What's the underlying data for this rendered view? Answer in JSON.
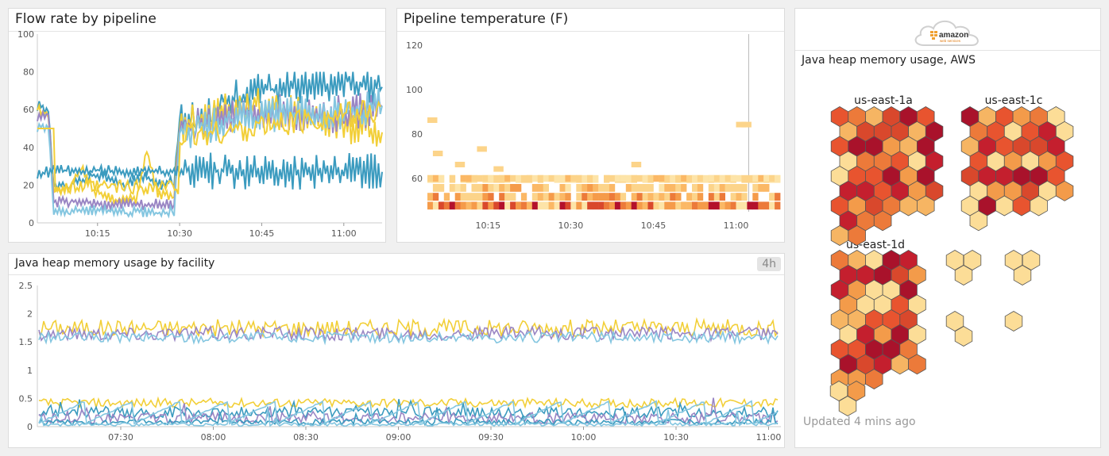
{
  "flow_panel": {
    "title": "Flow rate by pipeline"
  },
  "temp_panel": {
    "title": "Pipeline temperature (F)"
  },
  "heap_facility_panel": {
    "title": "Java heap memory usage by facility",
    "badge": "4h"
  },
  "aws_panel": {
    "logo_text": "amazon",
    "logo_sub": "web services",
    "title": "Java heap memory usage, AWS",
    "groups": [
      {
        "label": "us-east-1a"
      },
      {
        "label": "us-east-1c"
      },
      {
        "label": "us-east-1d"
      }
    ],
    "updated": "Updated 4 mins ago"
  },
  "colors": {
    "yellow": "#f2cf38",
    "purple": "#9a86c4",
    "blue": "#3b9bbf",
    "lightblue": "#84c6e0",
    "heat_light": "#fcdd97",
    "heat_mid": "#f39b4a",
    "heat_dark": "#b3112c"
  },
  "chart_data": [
    {
      "type": "line",
      "title": "Flow rate by pipeline",
      "xlabel": "",
      "ylabel": "",
      "x_ticks": [
        "10:15",
        "10:30",
        "10:45",
        "11:00"
      ],
      "y_ticks": [
        0,
        20,
        40,
        60,
        80,
        100
      ],
      "ylim": [
        0,
        100
      ],
      "xlim_minutes": [
        4,
        67
      ],
      "series": [
        {
          "values": [
            [
              4,
              62
            ],
            [
              6,
              60
            ],
            [
              7,
              20
            ],
            [
              10,
              20
            ],
            [
              12,
              22
            ],
            [
              14,
              25
            ],
            [
              16,
              26
            ],
            [
              18,
              22
            ],
            [
              20,
              20
            ],
            [
              22,
              23
            ],
            [
              24,
              24
            ],
            [
              26,
              20
            ],
            [
              29,
              22
            ],
            [
              30,
              55
            ],
            [
              33,
              58
            ],
            [
              36,
              62
            ],
            [
              40,
              66
            ],
            [
              44,
              70
            ],
            [
              48,
              71
            ],
            [
              52,
              72
            ],
            [
              56,
              73
            ],
            [
              60,
              75
            ],
            [
              64,
              73
            ],
            [
              67,
              72
            ]
          ]
        },
        {
          "values": [
            [
              4,
              60
            ],
            [
              6,
              58
            ],
            [
              7,
              18
            ],
            [
              10,
              18
            ],
            [
              12,
              30
            ],
            [
              14,
              18
            ],
            [
              16,
              14
            ],
            [
              18,
              12
            ],
            [
              20,
              13
            ],
            [
              22,
              12
            ],
            [
              24,
              38
            ],
            [
              26,
              15
            ],
            [
              29,
              15
            ],
            [
              30,
              52
            ],
            [
              33,
              55
            ],
            [
              36,
              58
            ],
            [
              40,
              60
            ],
            [
              44,
              62
            ],
            [
              48,
              60
            ],
            [
              52,
              58
            ],
            [
              56,
              55
            ],
            [
              60,
              52
            ],
            [
              64,
              50
            ],
            [
              67,
              48
            ]
          ]
        },
        {
          "values": [
            [
              4,
              55
            ],
            [
              6,
              58
            ],
            [
              7,
              11
            ],
            [
              10,
              11
            ],
            [
              12,
              12
            ],
            [
              14,
              10
            ],
            [
              16,
              9
            ],
            [
              18,
              10
            ],
            [
              20,
              10
            ],
            [
              22,
              10
            ],
            [
              24,
              9
            ],
            [
              26,
              10
            ],
            [
              29,
              10
            ],
            [
              30,
              50
            ],
            [
              33,
              52
            ],
            [
              36,
              56
            ],
            [
              40,
              58
            ],
            [
              44,
              60
            ],
            [
              48,
              60
            ],
            [
              52,
              58
            ],
            [
              56,
              57
            ],
            [
              60,
              58
            ],
            [
              64,
              60
            ],
            [
              67,
              62
            ]
          ]
        },
        {
          "values": [
            [
              4,
              50
            ],
            [
              6,
              52
            ],
            [
              7,
              6
            ],
            [
              10,
              6
            ],
            [
              12,
              6
            ],
            [
              14,
              7
            ],
            [
              16,
              6
            ],
            [
              18,
              6
            ],
            [
              20,
              5
            ],
            [
              22,
              6
            ],
            [
              24,
              6
            ],
            [
              26,
              5
            ],
            [
              29,
              6
            ],
            [
              30,
              48
            ],
            [
              33,
              50
            ],
            [
              36,
              52
            ],
            [
              40,
              55
            ],
            [
              44,
              56
            ],
            [
              48,
              57
            ],
            [
              52,
              58
            ],
            [
              56,
              57
            ],
            [
              60,
              58
            ],
            [
              64,
              60
            ],
            [
              67,
              62
            ]
          ]
        },
        {
          "values": [
            [
              4,
              26
            ],
            [
              8,
              28
            ],
            [
              12,
              27
            ],
            [
              16,
              28
            ],
            [
              20,
              27
            ],
            [
              24,
              28
            ],
            [
              28,
              27
            ],
            [
              30,
              28
            ],
            [
              34,
              27
            ],
            [
              38,
              28
            ],
            [
              42,
              27
            ],
            [
              46,
              28
            ],
            [
              50,
              27
            ],
            [
              54,
              28
            ],
            [
              58,
              27
            ],
            [
              62,
              28
            ],
            [
              67,
              27
            ]
          ]
        }
      ]
    },
    {
      "type": "heatmap",
      "title": "Pipeline temperature (F)",
      "x_ticks": [
        "10:15",
        "10:30",
        "10:45",
        "11:00"
      ],
      "y_ticks": [
        60,
        80,
        100,
        120
      ],
      "ylim": [
        45,
        125
      ],
      "xlim_minutes": [
        4,
        68
      ]
    },
    {
      "type": "line",
      "title": "Java heap memory usage by facility",
      "x_ticks": [
        "07:30",
        "08:00",
        "08:30",
        "09:00",
        "09:30",
        "10:00",
        "10:30",
        "11:00"
      ],
      "y_ticks": [
        0,
        0.5,
        1,
        1.5,
        2,
        2.5
      ],
      "ylim": [
        0,
        2.5
      ],
      "series": [
        {
          "base": 1.75,
          "amp": 0.15
        },
        {
          "base": 1.65,
          "amp": 0.12
        },
        {
          "base": 1.58,
          "amp": 0.1
        },
        {
          "base": 0.42,
          "amp": 0.08
        },
        {
          "base": 0.25,
          "amp": 0.1
        },
        {
          "base": 0.15,
          "amp": 0.1
        },
        {
          "base": 0.08,
          "amp": 0.05
        },
        {
          "base": 0.04,
          "amp": 0.03
        }
      ]
    }
  ]
}
